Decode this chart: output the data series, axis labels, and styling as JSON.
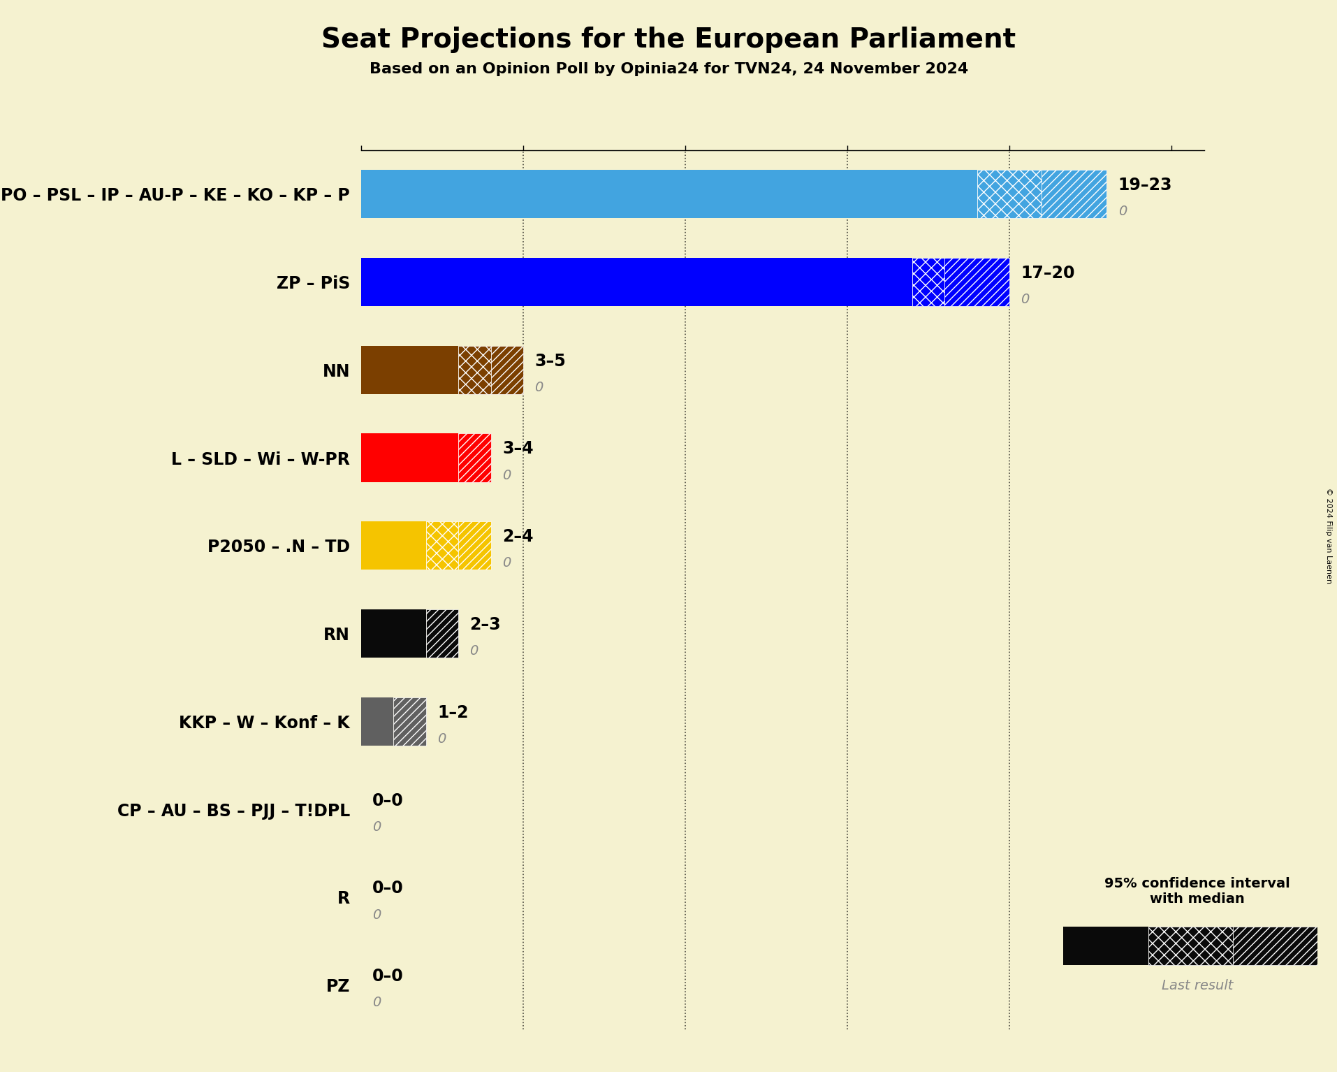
{
  "title": "Seat Projections for the European Parliament",
  "subtitle": "Based on an Opinion Poll by Opinia24 for TVN24, 24 November 2024",
  "copyright": "© 2024 Filip van Laenen",
  "background_color": "#f5f2d0",
  "parties": [
    {
      "label": "PO – PSL – IP – AU-P – KE – KO – KP – P",
      "color": "#42a4e0",
      "low": 19,
      "median": 21,
      "high": 23,
      "last": 0,
      "range_label": "19–23",
      "last_label": "0"
    },
    {
      "label": "ZP – PiS",
      "color": "#0000ff",
      "low": 17,
      "median": 18,
      "high": 20,
      "last": 0,
      "range_label": "17–20",
      "last_label": "0"
    },
    {
      "label": "NN",
      "color": "#7b3f00",
      "low": 3,
      "median": 4,
      "high": 5,
      "last": 0,
      "range_label": "3–5",
      "last_label": "0"
    },
    {
      "label": "L – SLD – Wi – W-PR",
      "color": "#ff0000",
      "low": 3,
      "median": 3,
      "high": 4,
      "last": 0,
      "range_label": "3–4",
      "last_label": "0"
    },
    {
      "label": "P2050 – .N – TD",
      "color": "#f5c400",
      "low": 2,
      "median": 3,
      "high": 4,
      "last": 0,
      "range_label": "2–4",
      "last_label": "0"
    },
    {
      "label": "RN",
      "color": "#0a0a0a",
      "low": 2,
      "median": 2,
      "high": 3,
      "last": 0,
      "range_label": "2–3",
      "last_label": "0"
    },
    {
      "label": "KKP – W – Konf – K",
      "color": "#606060",
      "low": 1,
      "median": 1,
      "high": 2,
      "last": 0,
      "range_label": "1–2",
      "last_label": "0"
    },
    {
      "label": "CP – AU – BS – PJJ – T!DPL",
      "color": "#606060",
      "low": 0,
      "median": 0,
      "high": 0,
      "last": 0,
      "range_label": "0–0",
      "last_label": "0"
    },
    {
      "label": "R",
      "color": "#606060",
      "low": 0,
      "median": 0,
      "high": 0,
      "last": 0,
      "range_label": "0–0",
      "last_label": "0"
    },
    {
      "label": "PZ",
      "color": "#606060",
      "low": 0,
      "median": 0,
      "high": 0,
      "last": 0,
      "range_label": "0–0",
      "last_label": "0"
    }
  ],
  "xlim": [
    0,
    26
  ],
  "xtick_positions": [
    0,
    5,
    10,
    15,
    20,
    25
  ],
  "dashed_lines": [
    5,
    10,
    15,
    20
  ],
  "bar_height": 0.55
}
